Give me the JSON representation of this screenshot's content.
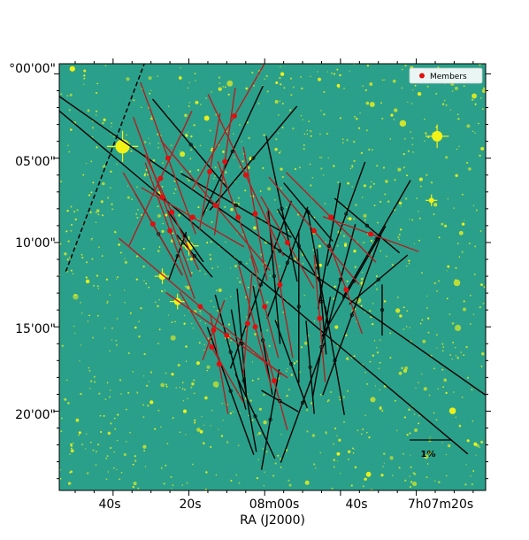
{
  "chart_data": {
    "type": "scatter",
    "title": "",
    "xlabel": "RA (J2000)",
    "ylabel": "",
    "x_ticks": [
      {
        "label": "40s",
        "ra_s": 40
      },
      {
        "label": "20s",
        "ra_s": 20
      },
      {
        "label": "08m00s",
        "ra_s": 0
      },
      {
        "label": "40s",
        "ra_s": -20
      },
      {
        "label": "7h07m20s",
        "ra_s": -40
      }
    ],
    "y_ticks": [
      {
        "label": "°00'00\"",
        "arcmin": 0
      },
      {
        "label": "05'00\"",
        "arcmin": 5
      },
      {
        "label": "10'00\"",
        "arcmin": 10
      },
      {
        "label": "15'00\"",
        "arcmin": 15
      },
      {
        "label": "20'00\"",
        "arcmin": 20
      }
    ],
    "xlim_ra_s": [
      54.2,
      -58.3
    ],
    "ylim_arcmin": [
      -0.6,
      24.7
    ],
    "background": {
      "base_color": "#2aa08a",
      "star_color": "#f2f218"
    },
    "legend": {
      "entries": [
        {
          "label": "Members",
          "color": "#e01010",
          "marker": "circle"
        }
      ],
      "location": "upper right"
    },
    "scale_bar": {
      "label": "1%"
    },
    "boundary_line": {
      "style": "dashed",
      "color": "#000000",
      "points": [
        [
          31.6,
          -0.7
        ],
        [
          52.6,
          11.8
        ]
      ]
    },
    "vector_units": {
      "length": "percent polarization",
      "angle": "degrees E of N"
    },
    "members": [
      {
        "ra_s": 27.5,
        "dec": 6.2,
        "p": 3.5,
        "pa": 155
      },
      {
        "ra_s": 25.5,
        "dec": 5.0,
        "p": 3.8,
        "pa": 20
      },
      {
        "ra_s": 27.0,
        "dec": 7.3,
        "p": 4.0,
        "pa": 20
      },
      {
        "ra_s": 24.5,
        "dec": 8.2,
        "p": 3.0,
        "pa": 25
      },
      {
        "ra_s": 29.5,
        "dec": 8.9,
        "p": 2.8,
        "pa": 30
      },
      {
        "ra_s": 25.0,
        "dec": 9.3,
        "p": 3.4,
        "pa": 20
      },
      {
        "ra_s": 19.0,
        "dec": 8.5,
        "p": 2.8,
        "pa": 60
      },
      {
        "ra_s": 14.5,
        "dec": 5.8,
        "p": 2.8,
        "pa": 170
      },
      {
        "ra_s": 10.5,
        "dec": 5.2,
        "p": 3.5,
        "pa": 172
      },
      {
        "ra_s": 8.0,
        "dec": 2.5,
        "p": 4.0,
        "pa": 150
      },
      {
        "ra_s": 13.0,
        "dec": 7.8,
        "p": 4.0,
        "pa": 40
      },
      {
        "ra_s": 5.0,
        "dec": 6.0,
        "p": 4.2,
        "pa": 25
      },
      {
        "ra_s": 7.0,
        "dec": 8.5,
        "p": 2.8,
        "pa": 20
      },
      {
        "ra_s": 2.5,
        "dec": 8.3,
        "p": 3.2,
        "pa": 10
      },
      {
        "ra_s": 17.0,
        "dec": 13.8,
        "p": 5.0,
        "pa": 50
      },
      {
        "ra_s": 10.0,
        "dec": 15.5,
        "p": 3.5,
        "pa": 55
      },
      {
        "ra_s": 13.5,
        "dec": 15.2,
        "p": 1.5,
        "pa": 160
      },
      {
        "ra_s": 14.0,
        "dec": 16.2,
        "p": 3.0,
        "pa": 30
      },
      {
        "ra_s": 12.0,
        "dec": 17.2,
        "p": 2.4,
        "pa": 10
      },
      {
        "ra_s": 2.5,
        "dec": 15.0,
        "p": 3.0,
        "pa": 15
      },
      {
        "ra_s": 4.5,
        "dec": 14.8,
        "p": 2.4,
        "pa": 175
      },
      {
        "ra_s": 0.0,
        "dec": 13.8,
        "p": 2.5,
        "pa": 15
      },
      {
        "ra_s": -4.0,
        "dec": 12.5,
        "p": 3.5,
        "pa": 10
      },
      {
        "ra_s": -6.0,
        "dec": 10.0,
        "p": 2.5,
        "pa": 30
      },
      {
        "ra_s": -13.0,
        "dec": 9.3,
        "p": 3.3,
        "pa": 40
      },
      {
        "ra_s": -17.5,
        "dec": 8.5,
        "p": 3.0,
        "pa": 45
      },
      {
        "ra_s": -28.0,
        "dec": 9.5,
        "p": 2.4,
        "pa": 70
      },
      {
        "ra_s": -14.5,
        "dec": 14.5,
        "p": 3.0,
        "pa": 5
      },
      {
        "ra_s": -21.5,
        "dec": 12.8,
        "p": 2.2,
        "pa": 20
      },
      {
        "ra_s": -2.5,
        "dec": 18.2,
        "p": 2.4,
        "pa": 15
      }
    ],
    "nonmembers": [
      {
        "ra_s": 8.5,
        "dec": 4.6,
        "p": 3.4,
        "pa": 155
      },
      {
        "ra_s": 7.5,
        "dec": 7.8,
        "p": 3.0,
        "pa": 60
      },
      {
        "ra_s": 19.5,
        "dec": 4.2,
        "p": 2.8,
        "pa": 40
      },
      {
        "ra_s": 28.0,
        "dec": 9.5,
        "p": 2.2,
        "pa": 30
      },
      {
        "ra_s": 21.0,
        "dec": 9.6,
        "p": 1.5,
        "pa": 35
      },
      {
        "ra_s": 23.0,
        "dec": 10.8,
        "p": 1.2,
        "pa": 160
      },
      {
        "ra_s": 18.5,
        "dec": 10.8,
        "p": 1.3,
        "pa": 40
      },
      {
        "ra_s": 3.0,
        "dec": 5.0,
        "p": 3.2,
        "pa": 140
      },
      {
        "ra_s": -4.5,
        "dec": 8.0,
        "p": 3.5,
        "pa": 12
      },
      {
        "ra_s": -11.5,
        "dec": 8.2,
        "p": 1.8,
        "pa": 40
      },
      {
        "ra_s": -9.0,
        "dec": 10.2,
        "p": 2.0,
        "pa": 30
      },
      {
        "ra_s": -17.0,
        "dec": 10.2,
        "p": 3.0,
        "pa": 170
      },
      {
        "ra_s": -21.5,
        "dec": 8.3,
        "p": 2.6,
        "pa": 160
      },
      {
        "ra_s": -27.0,
        "dec": 9.0,
        "p": 2.0,
        "pa": 50
      },
      {
        "ra_s": -29.5,
        "dec": 9.8,
        "p": 3.2,
        "pa": 150
      },
      {
        "ra_s": -6.0,
        "dec": 11.2,
        "p": 2.8,
        "pa": 160
      },
      {
        "ra_s": -14.0,
        "dec": 11.5,
        "p": 2.8,
        "pa": 10
      },
      {
        "ra_s": -20.0,
        "dec": 12.2,
        "p": 2.7,
        "pa": 165
      },
      {
        "ra_s": -23.5,
        "dec": 12.3,
        "p": 3.0,
        "pa": 150
      },
      {
        "ra_s": -30.0,
        "dec": 12.2,
        "p": 1.8,
        "pa": 130
      },
      {
        "ra_s": -31.0,
        "dec": 14.0,
        "p": 1.2,
        "pa": 0
      },
      {
        "ra_s": -4.0,
        "dec": 10.5,
        "p": 14.0,
        "pa": 55
      },
      {
        "ra_s": 1.0,
        "dec": 12.5,
        "p": 4.2,
        "pa": 160
      },
      {
        "ra_s": -2.5,
        "dec": 12.0,
        "p": 3.2,
        "pa": 5
      },
      {
        "ra_s": -9.0,
        "dec": 13.8,
        "p": 3.6,
        "pa": 0
      },
      {
        "ra_s": -15.0,
        "dec": 13.5,
        "p": 2.5,
        "pa": 5
      },
      {
        "ra_s": -23.0,
        "dec": 14.3,
        "p": 4.0,
        "pa": 160
      },
      {
        "ra_s": -15.0,
        "dec": 16.2,
        "p": 2.4,
        "pa": 170
      },
      {
        "ra_s": -18.5,
        "dec": 17.0,
        "p": 2.6,
        "pa": 10
      },
      {
        "ra_s": -12.0,
        "dec": 17.4,
        "p": 2.2,
        "pa": 5
      },
      {
        "ra_s": 0.5,
        "dec": 15.8,
        "p": 2.6,
        "pa": 10
      },
      {
        "ra_s": 6.0,
        "dec": 16.0,
        "p": 2.6,
        "pa": 5
      },
      {
        "ra_s": 9.0,
        "dec": 16.5,
        "p": 2.8,
        "pa": 15
      },
      {
        "ra_s": 9.0,
        "dec": 18.8,
        "p": 3.2,
        "pa": 20
      },
      {
        "ra_s": 5.5,
        "dec": 18.2,
        "p": 3.4,
        "pa": 10
      },
      {
        "ra_s": 2.5,
        "dec": 20.3,
        "p": 2.2,
        "pa": 25
      },
      {
        "ra_s": -1.5,
        "dec": 20.5,
        "p": 2.4,
        "pa": 170
      },
      {
        "ra_s": -7.0,
        "dec": 17.2,
        "p": 2.2,
        "pa": 20
      },
      {
        "ra_s": -10.0,
        "dec": 19.5,
        "p": 3.0,
        "pa": 160
      },
      {
        "ra_s": -4.0,
        "dec": 19.4,
        "p": 1.0,
        "pa": 60
      },
      {
        "ra_s": 6.5,
        "dec": 11.2,
        "p": 14.0,
        "pa": 50
      }
    ]
  }
}
